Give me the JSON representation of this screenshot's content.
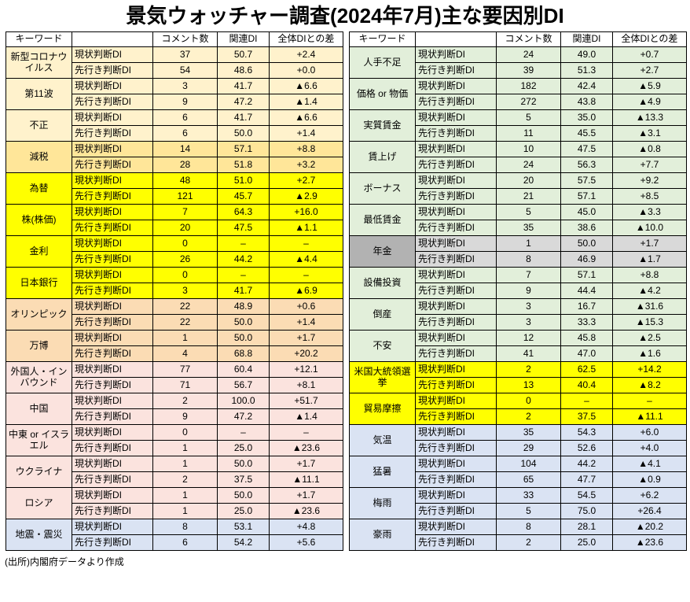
{
  "chart_data": {
    "type": "table",
    "title": "景気ウォッチャー調査(2024年7月)主な要因別DI",
    "columns": {
      "keyword": "キーワード",
      "judgment": "",
      "comments": "コメント数",
      "di": "関連DI",
      "diff": "全体DIとの差"
    },
    "row_labels": {
      "current": "現状判断DI",
      "future": "先行き判断DI"
    },
    "negative_marker": "▲",
    "left_table": [
      {
        "keyword": "新型コロナウイルス",
        "color": "cream",
        "current": {
          "comments": "37",
          "di": "50.7",
          "diff": "+2.4"
        },
        "future": {
          "comments": "54",
          "di": "48.6",
          "diff": "+0.0"
        }
      },
      {
        "keyword": "第11波",
        "color": "cream",
        "current": {
          "comments": "3",
          "di": "41.7",
          "diff": "▲6.6"
        },
        "future": {
          "comments": "9",
          "di": "47.2",
          "diff": "▲1.4"
        }
      },
      {
        "keyword": "不正",
        "color": "cream",
        "current": {
          "comments": "6",
          "di": "41.7",
          "diff": "▲6.6"
        },
        "future": {
          "comments": "6",
          "di": "50.0",
          "diff": "+1.4"
        }
      },
      {
        "keyword": "減税",
        "color": "gold",
        "current": {
          "comments": "14",
          "di": "57.1",
          "diff": "+8.8"
        },
        "future": {
          "comments": "28",
          "di": "51.8",
          "diff": "+3.2"
        }
      },
      {
        "keyword": "為替",
        "color": "yellow",
        "current": {
          "comments": "48",
          "di": "51.0",
          "diff": "+2.7"
        },
        "future": {
          "comments": "121",
          "di": "45.7",
          "diff": "▲2.9"
        }
      },
      {
        "keyword": "株(株価)",
        "color": "yellow",
        "current": {
          "comments": "7",
          "di": "64.3",
          "diff": "+16.0"
        },
        "future": {
          "comments": "20",
          "di": "47.5",
          "diff": "▲1.1"
        }
      },
      {
        "keyword": "金利",
        "color": "yellow",
        "current": {
          "comments": "0",
          "di": "–",
          "diff": "–"
        },
        "future": {
          "comments": "26",
          "di": "44.2",
          "diff": "▲4.4"
        }
      },
      {
        "keyword": "日本銀行",
        "color": "yellow",
        "current": {
          "comments": "0",
          "di": "–",
          "diff": "–"
        },
        "future": {
          "comments": "3",
          "di": "41.7",
          "diff": "▲6.9"
        }
      },
      {
        "keyword": "オリンピック",
        "color": "orange",
        "current": {
          "comments": "22",
          "di": "48.9",
          "diff": "+0.6"
        },
        "future": {
          "comments": "22",
          "di": "50.0",
          "diff": "+1.4"
        }
      },
      {
        "keyword": "万博",
        "color": "orange",
        "current": {
          "comments": "1",
          "di": "50.0",
          "diff": "+1.7"
        },
        "future": {
          "comments": "4",
          "di": "68.8",
          "diff": "+20.2"
        }
      },
      {
        "keyword": "外国人・インバウンド",
        "color": "pink",
        "current": {
          "comments": "77",
          "di": "60.4",
          "diff": "+12.1"
        },
        "future": {
          "comments": "71",
          "di": "56.7",
          "diff": "+8.1"
        }
      },
      {
        "keyword": "中国",
        "color": "pink",
        "current": {
          "comments": "2",
          "di": "100.0",
          "diff": "+51.7"
        },
        "future": {
          "comments": "9",
          "di": "47.2",
          "diff": "▲1.4"
        }
      },
      {
        "keyword": "中東 or イスラエル",
        "color": "pink",
        "current": {
          "comments": "0",
          "di": "–",
          "diff": "–"
        },
        "future": {
          "comments": "1",
          "di": "25.0",
          "diff": "▲23.6"
        }
      },
      {
        "keyword": "ウクライナ",
        "color": "pink",
        "current": {
          "comments": "1",
          "di": "50.0",
          "diff": "+1.7"
        },
        "future": {
          "comments": "2",
          "di": "37.5",
          "diff": "▲11.1"
        }
      },
      {
        "keyword": "ロシア",
        "color": "pink",
        "current": {
          "comments": "1",
          "di": "50.0",
          "diff": "+1.7"
        },
        "future": {
          "comments": "1",
          "di": "25.0",
          "diff": "▲23.6"
        }
      },
      {
        "keyword": "地震・震災",
        "color": "blue",
        "current": {
          "comments": "8",
          "di": "53.1",
          "diff": "+4.8"
        },
        "future": {
          "comments": "6",
          "di": "54.2",
          "diff": "+5.6"
        }
      }
    ],
    "right_table": [
      {
        "keyword": "人手不足",
        "color": "green",
        "current": {
          "comments": "24",
          "di": "49.0",
          "diff": "+0.7"
        },
        "future": {
          "comments": "39",
          "di": "51.3",
          "diff": "+2.7"
        }
      },
      {
        "keyword": "価格 or 物価",
        "color": "green",
        "current": {
          "comments": "182",
          "di": "42.4",
          "diff": "▲5.9"
        },
        "future": {
          "comments": "272",
          "di": "43.8",
          "diff": "▲4.9"
        }
      },
      {
        "keyword": "実質賃金",
        "color": "green",
        "current": {
          "comments": "5",
          "di": "35.0",
          "diff": "▲13.3"
        },
        "future": {
          "comments": "11",
          "di": "45.5",
          "diff": "▲3.1"
        }
      },
      {
        "keyword": "賃上げ",
        "color": "green",
        "current": {
          "comments": "10",
          "di": "47.5",
          "diff": "▲0.8"
        },
        "future": {
          "comments": "24",
          "di": "56.3",
          "diff": "+7.7"
        }
      },
      {
        "keyword": "ボーナス",
        "color": "green",
        "current": {
          "comments": "20",
          "di": "57.5",
          "diff": "+9.2"
        },
        "future": {
          "comments": "21",
          "di": "57.1",
          "diff": "+8.5"
        }
      },
      {
        "keyword": "最低賃金",
        "color": "green",
        "current": {
          "comments": "5",
          "di": "45.0",
          "diff": "▲3.3"
        },
        "future": {
          "comments": "35",
          "di": "38.6",
          "diff": "▲10.0"
        }
      },
      {
        "keyword": "年金",
        "color": "gray",
        "keyword_color": "gray_dark",
        "current": {
          "comments": "1",
          "di": "50.0",
          "diff": "+1.7"
        },
        "future": {
          "comments": "8",
          "di": "46.9",
          "diff": "▲1.7"
        }
      },
      {
        "keyword": "設備投資",
        "color": "green",
        "current": {
          "comments": "7",
          "di": "57.1",
          "diff": "+8.8"
        },
        "future": {
          "comments": "9",
          "di": "44.4",
          "diff": "▲4.2"
        }
      },
      {
        "keyword": "倒産",
        "color": "green",
        "current": {
          "comments": "3",
          "di": "16.7",
          "diff": "▲31.6"
        },
        "future": {
          "comments": "3",
          "di": "33.3",
          "diff": "▲15.3"
        }
      },
      {
        "keyword": "不安",
        "color": "green",
        "current": {
          "comments": "12",
          "di": "45.8",
          "diff": "▲2.5"
        },
        "future": {
          "comments": "41",
          "di": "47.0",
          "diff": "▲1.6"
        }
      },
      {
        "keyword": "米国大統領選挙",
        "color": "yellow",
        "current": {
          "comments": "2",
          "di": "62.5",
          "diff": "+14.2"
        },
        "future": {
          "comments": "13",
          "di": "40.4",
          "diff": "▲8.2"
        }
      },
      {
        "keyword": "貿易摩擦",
        "color": "yellow",
        "current": {
          "comments": "0",
          "di": "–",
          "diff": "–"
        },
        "future": {
          "comments": "2",
          "di": "37.5",
          "diff": "▲11.1"
        }
      },
      {
        "keyword": "気温",
        "color": "blue",
        "current": {
          "comments": "35",
          "di": "54.3",
          "diff": "+6.0"
        },
        "future": {
          "comments": "29",
          "di": "52.6",
          "diff": "+4.0"
        }
      },
      {
        "keyword": "猛暑",
        "color": "blue",
        "current": {
          "comments": "104",
          "di": "44.2",
          "diff": "▲4.1"
        },
        "future": {
          "comments": "65",
          "di": "47.7",
          "diff": "▲0.9"
        }
      },
      {
        "keyword": "梅雨",
        "color": "blue",
        "current": {
          "comments": "33",
          "di": "54.5",
          "diff": "+6.2"
        },
        "future": {
          "comments": "5",
          "di": "75.0",
          "diff": "+26.4"
        }
      },
      {
        "keyword": "豪雨",
        "color": "blue",
        "current": {
          "comments": "8",
          "di": "28.1",
          "diff": "▲20.2"
        },
        "future": {
          "comments": "2",
          "di": "25.0",
          "diff": "▲23.6"
        }
      }
    ]
  },
  "palette": {
    "cream": "#fff2cc",
    "gold": "#ffe699",
    "yellow": "#ffff00",
    "orange": "#fbdcb4",
    "pink": "#fbe3de",
    "blue": "#dae3f3",
    "green": "#e2efda",
    "gray": "#d9d9d9",
    "gray_dark": "#b2b2b2"
  },
  "footer": "(出所)内閣府データより作成"
}
